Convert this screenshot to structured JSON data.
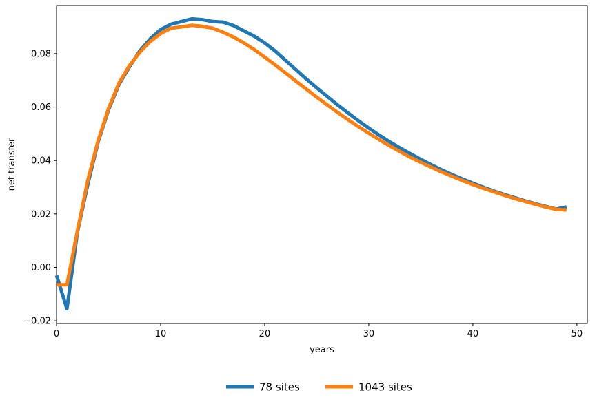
{
  "chart_data": {
    "type": "line",
    "xlabel": "years",
    "ylabel": "net transfer",
    "xlim": [
      0,
      51
    ],
    "ylim": [
      -0.021,
      0.098
    ],
    "xticks": [
      0,
      10,
      20,
      30,
      40,
      50
    ],
    "yticks": [
      -0.02,
      0.0,
      0.02,
      0.04,
      0.06,
      0.08
    ],
    "ytick_labels": [
      "−0.02",
      "0.00",
      "0.02",
      "0.04",
      "0.06",
      "0.08"
    ],
    "xtick_labels": [
      "0",
      "10",
      "20",
      "30",
      "40",
      "50"
    ],
    "grid": false,
    "legend_position": "bottom-center",
    "series": [
      {
        "name": "78 sites",
        "color": "#1f77b4",
        "x": [
          0,
          1,
          2,
          3,
          4,
          5,
          6,
          7,
          8,
          9,
          10,
          11,
          12,
          13,
          14,
          15,
          16,
          17,
          18,
          19,
          20,
          21,
          22,
          23,
          24,
          25,
          26,
          27,
          28,
          29,
          30,
          31,
          32,
          33,
          34,
          35,
          36,
          37,
          38,
          39,
          40,
          41,
          42,
          43,
          44,
          45,
          46,
          47,
          48,
          49
        ],
        "y": [
          -0.003,
          -0.0155,
          0.013,
          0.031,
          0.047,
          0.059,
          0.0685,
          0.075,
          0.081,
          0.0855,
          0.089,
          0.091,
          0.092,
          0.093,
          0.0927,
          0.092,
          0.0918,
          0.0905,
          0.0885,
          0.0865,
          0.084,
          0.081,
          0.0775,
          0.074,
          0.0705,
          0.0672,
          0.064,
          0.0608,
          0.0578,
          0.0549,
          0.0521,
          0.0495,
          0.047,
          0.0447,
          0.0425,
          0.0404,
          0.0384,
          0.0365,
          0.0347,
          0.0331,
          0.0315,
          0.03,
          0.0286,
          0.0273,
          0.0261,
          0.0249,
          0.0238,
          0.0228,
          0.0218,
          0.0226
        ]
      },
      {
        "name": "1043 sites",
        "color": "#ff7f0e",
        "x": [
          0,
          1,
          2,
          3,
          4,
          5,
          6,
          7,
          8,
          9,
          10,
          11,
          12,
          13,
          14,
          15,
          16,
          17,
          18,
          19,
          20,
          21,
          22,
          23,
          24,
          25,
          26,
          27,
          28,
          29,
          30,
          31,
          32,
          33,
          34,
          35,
          36,
          37,
          38,
          39,
          40,
          41,
          42,
          43,
          44,
          45,
          46,
          47,
          48,
          49
        ],
        "y": [
          -0.0065,
          -0.0065,
          0.0135,
          0.0325,
          0.0475,
          0.0595,
          0.069,
          0.0755,
          0.0805,
          0.0845,
          0.0875,
          0.0895,
          0.09,
          0.0906,
          0.0902,
          0.0895,
          0.088,
          0.0862,
          0.084,
          0.0815,
          0.0787,
          0.0758,
          0.0728,
          0.0697,
          0.0667,
          0.0637,
          0.0608,
          0.058,
          0.0553,
          0.0527,
          0.0502,
          0.0478,
          0.0455,
          0.0433,
          0.0412,
          0.0393,
          0.0375,
          0.0357,
          0.0341,
          0.0325,
          0.031,
          0.0296,
          0.0283,
          0.027,
          0.0258,
          0.0247,
          0.0236,
          0.0226,
          0.0217,
          0.0215
        ]
      }
    ]
  }
}
